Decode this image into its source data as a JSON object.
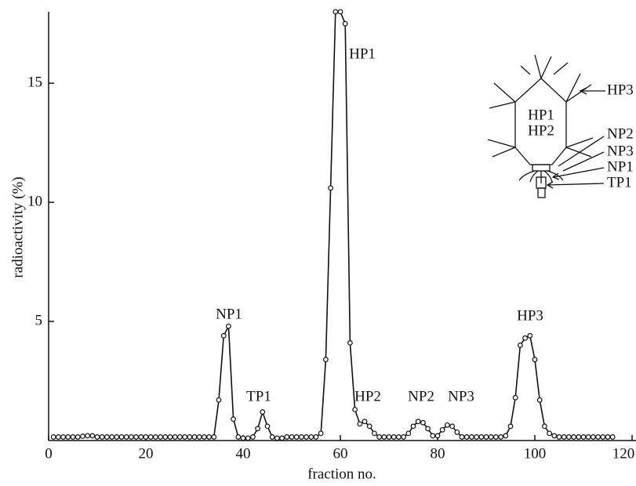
{
  "chart_data": {
    "type": "line",
    "x_label": "fraction no.",
    "y_label": "radioactivity (%)",
    "x": [
      1,
      2,
      3,
      4,
      5,
      6,
      7,
      8,
      9,
      10,
      11,
      12,
      13,
      14,
      15,
      16,
      17,
      18,
      19,
      20,
      21,
      22,
      23,
      24,
      25,
      26,
      27,
      28,
      29,
      30,
      31,
      32,
      33,
      34,
      35,
      36,
      37,
      38,
      39,
      40,
      41,
      42,
      43,
      44,
      45,
      46,
      47,
      48,
      49,
      50,
      51,
      52,
      53,
      54,
      55,
      56,
      57,
      58,
      59,
      60,
      61,
      62,
      63,
      64,
      65,
      66,
      67,
      68,
      69,
      70,
      71,
      72,
      73,
      74,
      75,
      76,
      77,
      78,
      79,
      80,
      81,
      82,
      83,
      84,
      85,
      86,
      87,
      88,
      89,
      90,
      91,
      92,
      93,
      94,
      95,
      96,
      97,
      98,
      99,
      100,
      101,
      102,
      103,
      104,
      105,
      106,
      107,
      108,
      109,
      110,
      111,
      112,
      113,
      114,
      115,
      116
    ],
    "values": [
      0.15,
      0.15,
      0.15,
      0.15,
      0.15,
      0.15,
      0.18,
      0.2,
      0.2,
      0.15,
      0.15,
      0.15,
      0.15,
      0.15,
      0.15,
      0.15,
      0.15,
      0.15,
      0.15,
      0.15,
      0.15,
      0.15,
      0.15,
      0.15,
      0.15,
      0.15,
      0.15,
      0.15,
      0.15,
      0.15,
      0.15,
      0.15,
      0.15,
      0.15,
      1.7,
      4.4,
      4.8,
      0.9,
      0.15,
      0.1,
      0.1,
      0.15,
      0.5,
      1.2,
      0.6,
      0.15,
      0.1,
      0.1,
      0.15,
      0.15,
      0.15,
      0.15,
      0.15,
      0.15,
      0.15,
      0.3,
      3.4,
      10.6,
      18.0,
      18.0,
      17.5,
      4.1,
      1.3,
      0.7,
      0.8,
      0.6,
      0.3,
      0.15,
      0.15,
      0.15,
      0.15,
      0.15,
      0.15,
      0.3,
      0.6,
      0.8,
      0.75,
      0.5,
      0.2,
      0.2,
      0.45,
      0.65,
      0.6,
      0.35,
      0.15,
      0.15,
      0.15,
      0.15,
      0.15,
      0.15,
      0.15,
      0.15,
      0.15,
      0.2,
      0.6,
      1.8,
      4.0,
      4.3,
      4.4,
      3.4,
      1.7,
      0.6,
      0.3,
      0.2,
      0.15,
      0.15,
      0.15,
      0.15,
      0.15,
      0.15,
      0.15,
      0.15,
      0.15,
      0.15,
      0.15,
      0.15
    ],
    "color": "#111111",
    "xlim": [
      0,
      120
    ],
    "ylim": [
      0,
      18
    ],
    "xticks": [
      0,
      20,
      40,
      60,
      80,
      100,
      120
    ],
    "yticks": [
      5,
      10,
      15
    ],
    "annotations": [
      "NP1",
      "TP1",
      "HP1",
      "HP2",
      "NP2",
      "NP3",
      "HP3"
    ],
    "diagram_labels": [
      "HP1",
      "HP2",
      "HP3",
      "NP2",
      "NP3",
      "NP1",
      "TP1"
    ]
  }
}
